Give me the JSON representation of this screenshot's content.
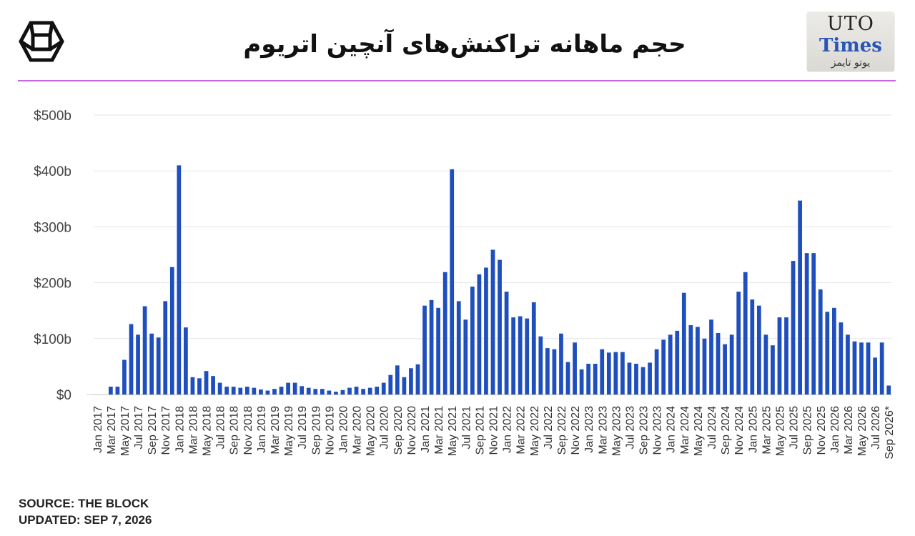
{
  "header": {
    "title": "حجم ماهانه تراکنش‌های آنچین اتریوم",
    "brand_badge": {
      "line1": "UTO",
      "line2": "Times",
      "line3": "یوتو تایمز"
    },
    "accent_color": "#c46ae0",
    "brand_color": "#2a55b5"
  },
  "chart_data": {
    "type": "bar",
    "title": "حجم ماهانه تراکنش‌های آنچین اتریوم",
    "bar_color": "#1f4fbd",
    "ylim": [
      0,
      500
    ],
    "y_ticks": [
      0,
      100,
      200,
      300,
      400,
      500
    ],
    "y_tick_labels": [
      "$0",
      "$100b",
      "$200b",
      "$300b",
      "$400b",
      "$500b"
    ],
    "grid": true,
    "months": [
      "Jan 2017",
      "Feb 2017",
      "Mar 2017",
      "Apr 2017",
      "May 2017",
      "Jun 2017",
      "Jul 2017",
      "Aug 2017",
      "Sep 2017",
      "Oct 2017",
      "Nov 2017",
      "Dec 2017",
      "Jan 2018",
      "Feb 2018",
      "Mar 2018",
      "Apr 2018",
      "May 2018",
      "Jun 2018",
      "Jul 2018",
      "Aug 2018",
      "Sep 2018",
      "Oct 2018",
      "Nov 2018",
      "Dec 2018",
      "Jan 2019",
      "Feb 2019",
      "Mar 2019",
      "Apr 2019",
      "May 2019",
      "Jun 2019",
      "Jul 2019",
      "Aug 2019",
      "Sep 2019",
      "Oct 2019",
      "Nov 2019",
      "Dec 2019",
      "Jan 2020",
      "Feb 2020",
      "Mar 2020",
      "Apr 2020",
      "May 2020",
      "Jun 2020",
      "Jul 2020",
      "Aug 2020",
      "Sep 2020",
      "Oct 2020",
      "Nov 2020",
      "Dec 2020",
      "Jan 2021",
      "Feb 2021",
      "Mar 2021",
      "Apr 2021",
      "May 2021",
      "Jun 2021",
      "Jul 2021",
      "Aug 2021",
      "Sep 2021",
      "Oct 2021",
      "Nov 2021",
      "Dec 2021",
      "Jan 2022",
      "Feb 2022",
      "Mar 2022",
      "Apr 2022",
      "May 2022",
      "Jun 2022",
      "Jul 2022",
      "Aug 2022",
      "Sep 2022",
      "Oct 2022",
      "Nov 2022",
      "Dec 2022",
      "Jan 2023",
      "Feb 2023",
      "Mar 2023",
      "Apr 2023",
      "May 2023",
      "Jun 2023",
      "Jul 2023",
      "Aug 2023",
      "Sep 2023",
      "Oct 2023",
      "Nov 2023",
      "Dec 2023",
      "Jan 2024",
      "Feb 2024",
      "Mar 2024",
      "Apr 2024",
      "May 2024",
      "Jun 2024",
      "Jul 2024",
      "Aug 2024",
      "Sep 2024",
      "Oct 2024",
      "Nov 2024",
      "Dec 2024",
      "Jan 2025",
      "Feb 2025",
      "Mar 2025",
      "Apr 2025",
      "May 2025",
      "Jun 2025",
      "Jul 2025",
      "Aug 2025",
      "Sep 2025",
      "Oct 2025",
      "Nov 2025",
      "Dec 2025",
      "Jan 2026",
      "Feb 2026",
      "Mar 2026",
      "Apr 2026",
      "May 2026",
      "Jun 2026",
      "Jul 2026",
      "Aug 2026",
      "Sep 2026*"
    ],
    "values": [
      0,
      0,
      14,
      14,
      62,
      126,
      107,
      158,
      109,
      102,
      167,
      228,
      410,
      120,
      31,
      29,
      42,
      33,
      21,
      14,
      14,
      12,
      14,
      12,
      9,
      7,
      10,
      14,
      21,
      21,
      15,
      12,
      10,
      10,
      7,
      5,
      8,
      12,
      14,
      10,
      12,
      14,
      21,
      35,
      52,
      31,
      47,
      54,
      159,
      169,
      155,
      219,
      403,
      167,
      134,
      193,
      215,
      227,
      259,
      241,
      184,
      138,
      140,
      136,
      165,
      104,
      83,
      81,
      109,
      58,
      93,
      45,
      55,
      55,
      81,
      75,
      76,
      76,
      57,
      55,
      49,
      57,
      81,
      98,
      107,
      114,
      182,
      124,
      121,
      100,
      134,
      110,
      90,
      107,
      184,
      219,
      170,
      159,
      107,
      88,
      138,
      138,
      239,
      347,
      253,
      253,
      188,
      148,
      155,
      129,
      107,
      95,
      93,
      93,
      66,
      93,
      16
    ],
    "x_labels": [
      "Jan 2017",
      "Mar 2017",
      "May 2017",
      "Jul 2017",
      "Sep 2017",
      "Nov 2017",
      "Jan 2018",
      "Mar 2018",
      "May 2018",
      "Jul 2018",
      "Sep 2018",
      "Nov 2018",
      "Jan 2019",
      "Mar 2019",
      "May 2019",
      "Jul 2019",
      "Sep 2019",
      "Nov 2019",
      "Jan 2020",
      "Mar 2020",
      "May 2020",
      "Jul 2020",
      "Sep 2020",
      "Nov 2020",
      "Jan 2021",
      "Mar 2021",
      "May 2021",
      "Jul 2021",
      "Sep 2021",
      "Nov 2021",
      "Jan 2022",
      "Mar 2022",
      "May 2022",
      "Jul 2022",
      "Sep 2022",
      "Nov 2022",
      "Jan 2023",
      "Mar 2023",
      "May 2023",
      "Jul 2023",
      "Sep 2023",
      "Nov 2023",
      "Jan 2024",
      "Mar 2024",
      "May 2024",
      "Jul 2024",
      "Sep 2024",
      "Nov 2024",
      "Jan 2025",
      "Mar 2025",
      "May 2025",
      "Jul 2025",
      "Sep 2025",
      "Nov 2025",
      "Jan 2026",
      "Mar 2026",
      "May 2026",
      "Jul 2026",
      "Sep 2026*"
    ]
  },
  "footer": {
    "source": "SOURCE: THE BLOCK",
    "updated": "UPDATED: SEP 7, 2026"
  }
}
